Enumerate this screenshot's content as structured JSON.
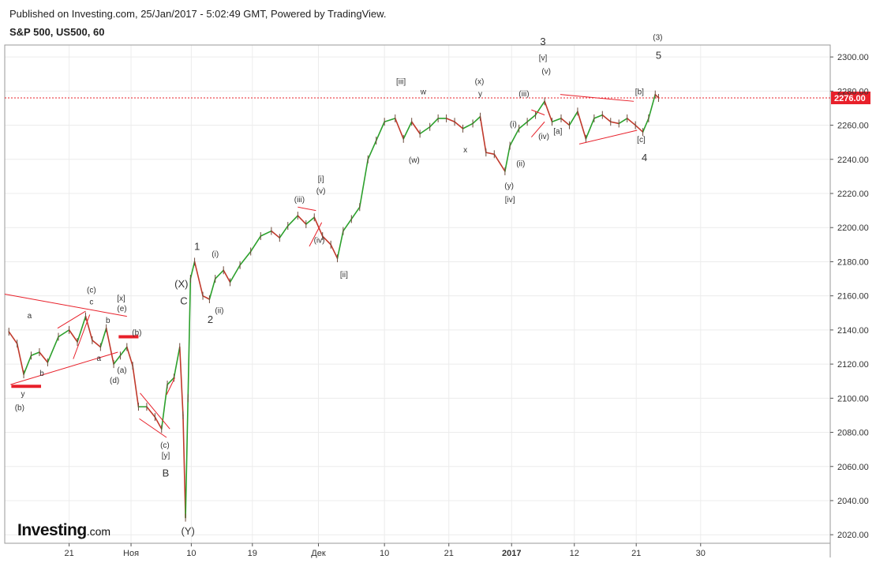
{
  "header": {
    "published": "Published on Investing.com, 25/Jan/2017 - 5:02:49 GMT, Powered by TradingView.",
    "symbol": "S&P 500, US500, 60"
  },
  "logo": {
    "main": "Investing",
    "sub": ".com"
  },
  "colors": {
    "up": "#2ca02c",
    "down": "#c0392b",
    "annotation": "#e8202a",
    "grid": "#ececec",
    "axis": "#555555",
    "price_tag_bg": "#e8202a"
  },
  "chart_data": {
    "type": "line",
    "ylim": [
      2015,
      2307
    ],
    "xlim": [
      0,
      100
    ],
    "ylabel": "",
    "xlabel": "",
    "grid": true,
    "current_price": {
      "value": 2276,
      "label": "2276.00"
    },
    "y_ticks": [
      {
        "v": 2020,
        "label": "2020.00"
      },
      {
        "v": 2040,
        "label": "2040.00"
      },
      {
        "v": 2060,
        "label": "2060.00"
      },
      {
        "v": 2080,
        "label": "2080.00"
      },
      {
        "v": 2100,
        "label": "2100.00"
      },
      {
        "v": 2120,
        "label": "2120.00"
      },
      {
        "v": 2140,
        "label": "2140.00"
      },
      {
        "v": 2160,
        "label": "2160.00"
      },
      {
        "v": 2180,
        "label": "2180.00"
      },
      {
        "v": 2200,
        "label": "2200.00"
      },
      {
        "v": 2220,
        "label": "2220.00"
      },
      {
        "v": 2240,
        "label": "2240.00"
      },
      {
        "v": 2260,
        "label": "2260.00"
      },
      {
        "v": 2280,
        "label": "2280.00"
      },
      {
        "v": 2300,
        "label": "2300.00"
      }
    ],
    "x_ticks": [
      {
        "x": 7.8,
        "label": "21"
      },
      {
        "x": 15.3,
        "label": "Ноя"
      },
      {
        "x": 22.6,
        "label": "10"
      },
      {
        "x": 30.0,
        "label": "19"
      },
      {
        "x": 38.0,
        "label": "Дек"
      },
      {
        "x": 46.0,
        "label": "10"
      },
      {
        "x": 53.8,
        "label": "21"
      },
      {
        "x": 61.4,
        "label": "2017",
        "bold": true
      },
      {
        "x": 69.0,
        "label": "12"
      },
      {
        "x": 76.5,
        "label": "21"
      },
      {
        "x": 84.3,
        "label": "30"
      }
    ],
    "series": [
      {
        "points": [
          [
            0.5,
            2139
          ],
          [
            1.5,
            2132
          ],
          [
            2.3,
            2114
          ],
          [
            3.2,
            2125
          ],
          [
            4.2,
            2127
          ],
          [
            5.2,
            2121
          ],
          [
            6.5,
            2136
          ],
          [
            7.8,
            2140
          ],
          [
            8.8,
            2133
          ],
          [
            9.8,
            2148
          ],
          [
            10.6,
            2134
          ],
          [
            11.6,
            2130
          ],
          [
            12.3,
            2141
          ],
          [
            13.2,
            2120
          ],
          [
            14.0,
            2125
          ],
          [
            14.8,
            2130
          ],
          [
            15.5,
            2119
          ],
          [
            16.2,
            2095
          ],
          [
            17.2,
            2095
          ],
          [
            18.2,
            2089
          ],
          [
            19.0,
            2082
          ],
          [
            19.7,
            2108
          ],
          [
            20.5,
            2112
          ],
          [
            21.2,
            2130
          ],
          [
            21.6,
            2090
          ],
          [
            21.9,
            2030
          ],
          [
            22.2,
            2100
          ],
          [
            22.5,
            2170
          ],
          [
            23.0,
            2180
          ],
          [
            24.0,
            2160
          ],
          [
            24.8,
            2158
          ],
          [
            25.5,
            2170
          ],
          [
            26.5,
            2175
          ],
          [
            27.3,
            2168
          ],
          [
            28.5,
            2178
          ],
          [
            29.8,
            2186
          ],
          [
            31.0,
            2195
          ],
          [
            32.3,
            2198
          ],
          [
            33.3,
            2194
          ],
          [
            34.3,
            2201
          ],
          [
            35.5,
            2207
          ],
          [
            36.5,
            2202
          ],
          [
            37.5,
            2206
          ],
          [
            38.5,
            2195
          ],
          [
            39.5,
            2190
          ],
          [
            40.3,
            2182
          ],
          [
            41.0,
            2198
          ],
          [
            42.0,
            2205
          ],
          [
            43.0,
            2212
          ],
          [
            44.0,
            2240
          ],
          [
            45.0,
            2251
          ],
          [
            46.0,
            2262
          ],
          [
            47.3,
            2264
          ],
          [
            48.3,
            2252
          ],
          [
            49.3,
            2262
          ],
          [
            50.3,
            2255
          ],
          [
            51.5,
            2259
          ],
          [
            52.5,
            2264
          ],
          [
            53.5,
            2264
          ],
          [
            54.5,
            2262
          ],
          [
            55.5,
            2258
          ],
          [
            56.7,
            2261
          ],
          [
            57.6,
            2265
          ],
          [
            58.3,
            2244
          ],
          [
            59.3,
            2243
          ],
          [
            60.6,
            2233
          ],
          [
            61.2,
            2248
          ],
          [
            62.3,
            2258
          ],
          [
            63.3,
            2262
          ],
          [
            64.3,
            2266
          ],
          [
            65.4,
            2274
          ],
          [
            66.3,
            2262
          ],
          [
            67.4,
            2264
          ],
          [
            68.4,
            2260
          ],
          [
            69.4,
            2268
          ],
          [
            70.4,
            2252
          ],
          [
            71.4,
            2264
          ],
          [
            72.4,
            2266
          ],
          [
            73.4,
            2262
          ],
          [
            74.4,
            2261
          ],
          [
            75.4,
            2264
          ],
          [
            76.4,
            2260
          ],
          [
            77.3,
            2256
          ],
          [
            78.0,
            2264
          ],
          [
            78.8,
            2278
          ],
          [
            79.2,
            2276
          ]
        ]
      }
    ],
    "wave_labels": [
      {
        "t": "a",
        "x": 3.0,
        "y": 2147
      },
      {
        "t": "y",
        "x": 2.2,
        "y": 2101
      },
      {
        "t": "(b)",
        "x": 1.8,
        "y": 2093
      },
      {
        "t": "b",
        "x": 4.5,
        "y": 2113
      },
      {
        "t": "(c)",
        "x": 10.5,
        "y": 2162
      },
      {
        "t": "c",
        "x": 10.5,
        "y": 2155
      },
      {
        "t": "b",
        "x": 12.5,
        "y": 2144
      },
      {
        "t": "a",
        "x": 11.4,
        "y": 2122
      },
      {
        "t": "[x]",
        "x": 14.1,
        "y": 2157
      },
      {
        "t": "(e)",
        "x": 14.2,
        "y": 2151
      },
      {
        "t": "(b)",
        "x": 16.0,
        "y": 2137
      },
      {
        "t": "(a)",
        "x": 14.2,
        "y": 2115
      },
      {
        "t": "(d)",
        "x": 13.3,
        "y": 2109
      },
      {
        "t": "(c)",
        "x": 19.4,
        "y": 2071
      },
      {
        "t": "[y]",
        "x": 19.5,
        "y": 2065
      },
      {
        "t": "B",
        "x": 19.5,
        "y": 2054
      },
      {
        "t": "(X)",
        "x": 21.4,
        "y": 2165
      },
      {
        "t": "C",
        "x": 21.7,
        "y": 2155
      },
      {
        "t": "(Y)",
        "x": 22.2,
        "y": 2020
      },
      {
        "t": "1",
        "x": 23.3,
        "y": 2187
      },
      {
        "t": "(i)",
        "x": 25.5,
        "y": 2183
      },
      {
        "t": "(ii)",
        "x": 26.0,
        "y": 2150
      },
      {
        "t": "2",
        "x": 24.9,
        "y": 2144
      },
      {
        "t": "(iii)",
        "x": 35.7,
        "y": 2215
      },
      {
        "t": "[i]",
        "x": 38.3,
        "y": 2227
      },
      {
        "t": "(v)",
        "x": 38.3,
        "y": 2220
      },
      {
        "t": "(iv)",
        "x": 38.1,
        "y": 2191
      },
      {
        "t": "[ii]",
        "x": 41.1,
        "y": 2171
      },
      {
        "t": "[iii]",
        "x": 48.0,
        "y": 2284
      },
      {
        "t": "w",
        "x": 50.7,
        "y": 2278
      },
      {
        "t": "(w)",
        "x": 49.6,
        "y": 2238
      },
      {
        "t": "(x)",
        "x": 57.5,
        "y": 2284
      },
      {
        "t": "y",
        "x": 57.6,
        "y": 2277
      },
      {
        "t": "x",
        "x": 55.8,
        "y": 2244
      },
      {
        "t": "(iii)",
        "x": 62.9,
        "y": 2277
      },
      {
        "t": "(y)",
        "x": 61.1,
        "y": 2223
      },
      {
        "t": "[iv]",
        "x": 61.2,
        "y": 2215
      },
      {
        "t": "(i)",
        "x": 61.6,
        "y": 2259
      },
      {
        "t": "(ii)",
        "x": 62.5,
        "y": 2236
      },
      {
        "t": "(iv)",
        "x": 65.3,
        "y": 2252
      },
      {
        "t": "[a]",
        "x": 67.0,
        "y": 2255
      },
      {
        "t": "3",
        "x": 65.2,
        "y": 2307
      },
      {
        "t": "[v]",
        "x": 65.2,
        "y": 2298
      },
      {
        "t": "(v)",
        "x": 65.6,
        "y": 2290
      },
      {
        "t": "[b]",
        "x": 76.9,
        "y": 2278
      },
      {
        "t": "[c]",
        "x": 77.1,
        "y": 2250
      },
      {
        "t": "4",
        "x": 77.5,
        "y": 2239
      },
      {
        "t": "(3)",
        "x": 79.1,
        "y": 2310
      },
      {
        "t": "5",
        "x": 79.2,
        "y": 2299
      }
    ],
    "trend_lines": [
      [
        0,
        2161,
        14.8,
        2148
      ],
      [
        0.7,
        2108,
        13.7,
        2127
      ],
      [
        6.4,
        2141,
        9.8,
        2151
      ],
      [
        8.3,
        2123,
        10.3,
        2149
      ],
      [
        16.4,
        2103,
        20.0,
        2082
      ],
      [
        16.3,
        2088,
        19.6,
        2077
      ],
      [
        19.6,
        2102,
        20.6,
        2112
      ],
      [
        35.5,
        2212,
        37.7,
        2210
      ],
      [
        36.9,
        2189,
        38.4,
        2203
      ],
      [
        63.8,
        2269,
        65.4,
        2266
      ],
      [
        63.8,
        2253,
        65.4,
        2262
      ],
      [
        67.3,
        2278,
        76.2,
        2274
      ],
      [
        69.6,
        2249,
        76.6,
        2257
      ]
    ],
    "thick_marks": [
      [
        0.8,
        4.4,
        2107
      ],
      [
        13.8,
        16.2,
        2136
      ]
    ]
  }
}
